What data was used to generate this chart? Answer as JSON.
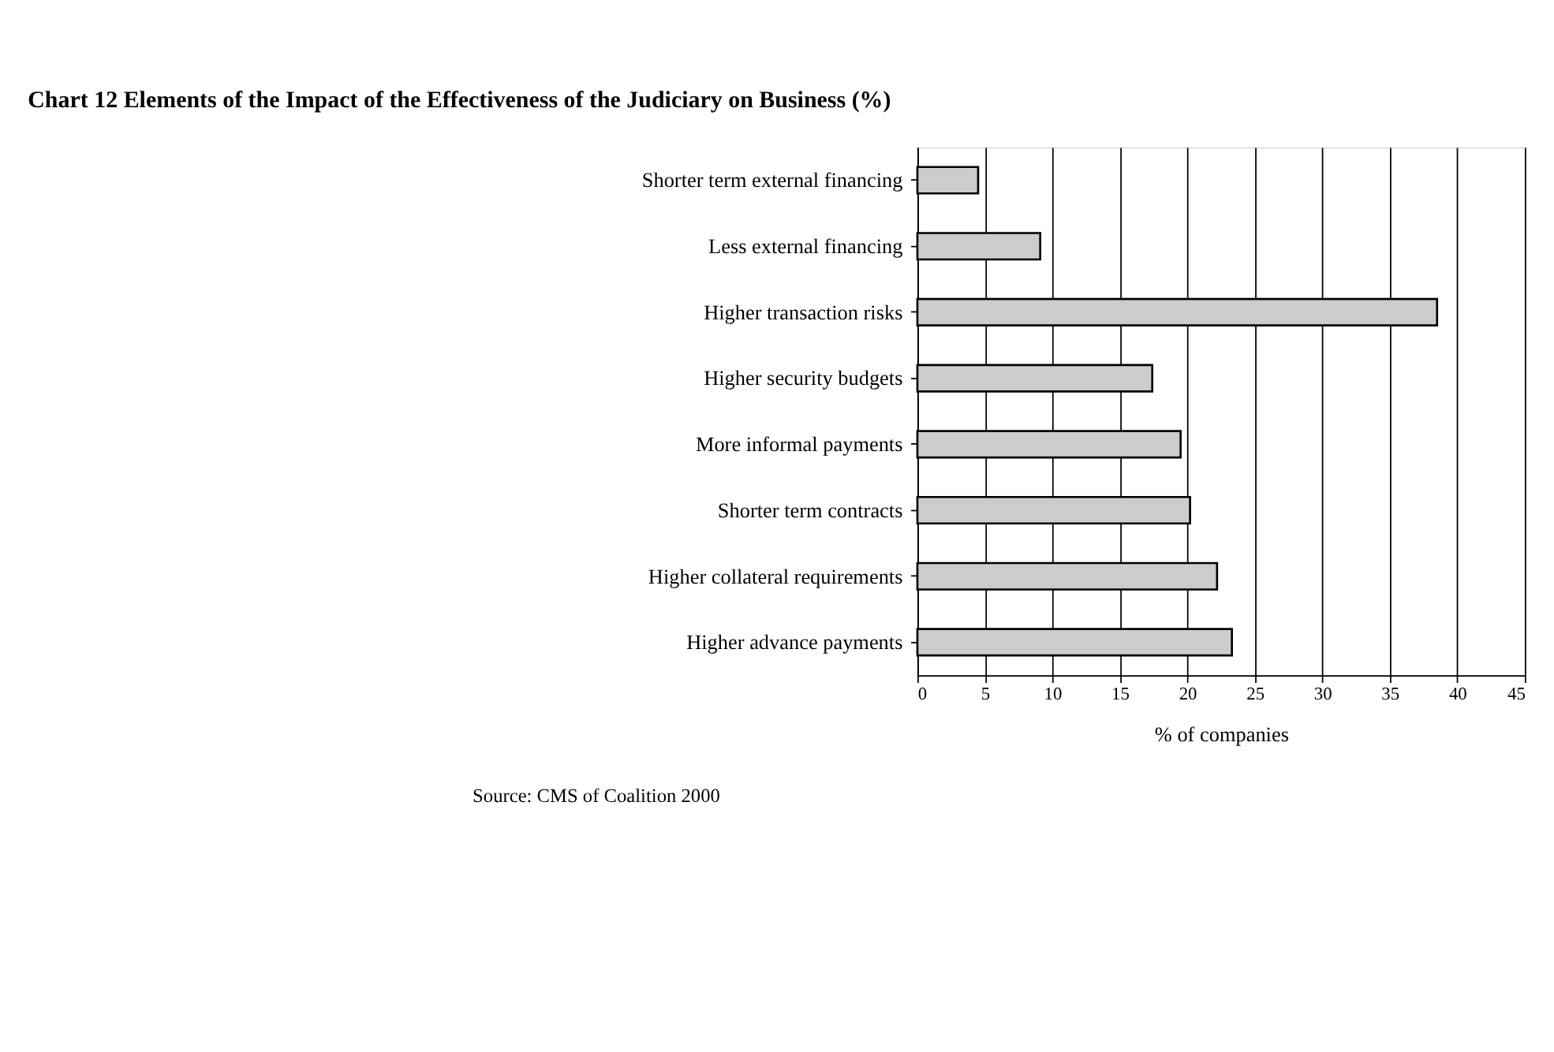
{
  "chart_data": {
    "type": "bar",
    "orientation": "horizontal",
    "title": "Chart 12    Elements of the Impact of the Effectiveness of the Judiciary on Business (%)",
    "categories": [
      "Shorter term external financing",
      "Less external financing",
      "Higher transaction risks",
      "Higher security budgets",
      "More informal payments",
      "Shorter term contracts",
      "Higher collateral requirements",
      "Higher advance payments"
    ],
    "values": [
      4.5,
      9.1,
      38.5,
      17.4,
      19.5,
      20.2,
      22.2,
      23.3
    ],
    "color": "#cccccc",
    "xlabel": "% of companies",
    "xlim": [
      0,
      45
    ],
    "xticks": [
      0,
      5,
      10,
      15,
      20,
      25,
      30,
      35,
      40,
      45
    ],
    "grid": "x",
    "annotations": [
      "Source:   CMS of Coalition 2000"
    ]
  }
}
